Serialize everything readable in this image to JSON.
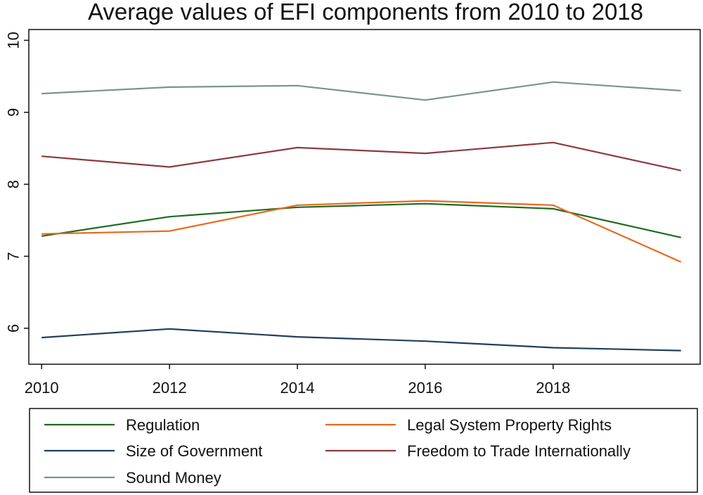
{
  "chart_data": {
    "type": "line",
    "title": "Average values of EFI components from 2010 to 2018",
    "xlabel": "",
    "ylabel": "",
    "x": [
      2010,
      2012,
      2014,
      2016,
      2018,
      2020
    ],
    "xlim": [
      2009.8,
      2020.3
    ],
    "ylim": [
      5.5,
      10.15
    ],
    "x_ticks": [
      "2010",
      "2012",
      "2014",
      "2016",
      "2018"
    ],
    "y_ticks": [
      "6",
      "7",
      "8",
      "9",
      "10"
    ],
    "grid": false,
    "legend_position": "bottom",
    "series": [
      {
        "name": "Regulation",
        "color": "#1e6b1e",
        "values": [
          7.28,
          7.55,
          7.68,
          7.73,
          7.66,
          7.26
        ]
      },
      {
        "name": "Legal System Property Rights",
        "color": "#e8691e",
        "values": [
          7.31,
          7.35,
          7.71,
          7.77,
          7.71,
          6.92
        ]
      },
      {
        "name": "Size of Government",
        "color": "#1f3f5c",
        "values": [
          5.87,
          5.99,
          5.88,
          5.82,
          5.73,
          5.69
        ]
      },
      {
        "name": "Freedom to Trade Internationally",
        "color": "#8b3a3e",
        "values": [
          8.39,
          8.24,
          8.51,
          8.43,
          8.58,
          8.19
        ]
      },
      {
        "name": "Sound Money",
        "color": "#7a948c",
        "values": [
          9.26,
          9.35,
          9.37,
          9.17,
          9.42,
          9.3
        ]
      }
    ]
  }
}
